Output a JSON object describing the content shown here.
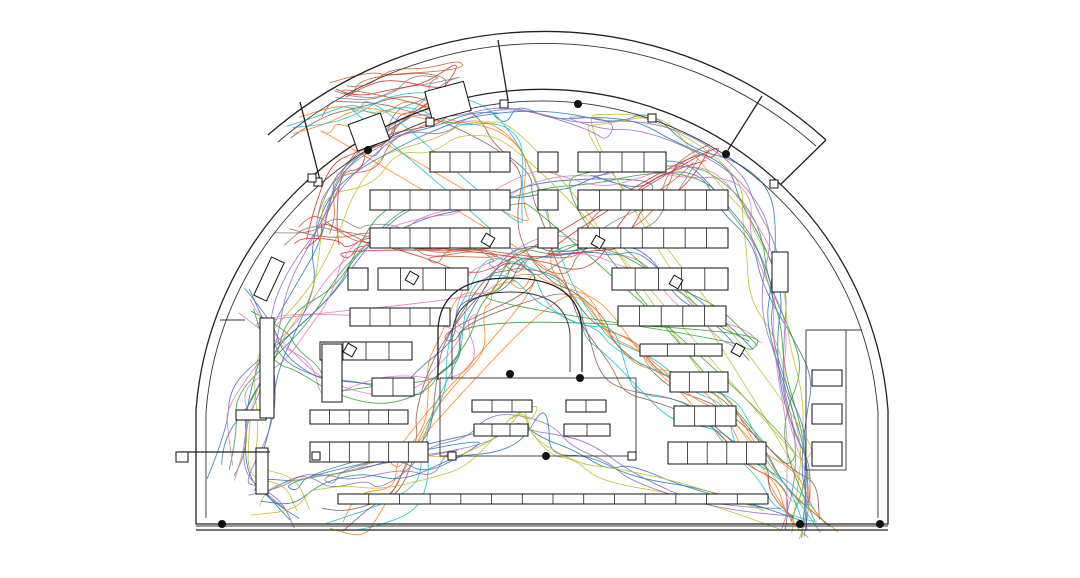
{
  "figure": {
    "kind": "store-floorplan-movement-trajectories",
    "background": "#ffffff",
    "wall_color": "#222222",
    "trajectory_palette": [
      "#1f77b4",
      "#ff7f0e",
      "#2ca02c",
      "#d62728",
      "#9467bd",
      "#8c564b",
      "#e377c2",
      "#7f7f7f",
      "#bcbd22",
      "#17becf",
      "#3a6fb0",
      "#c45a2a"
    ],
    "trajectory_count": 48,
    "text_labels": []
  }
}
